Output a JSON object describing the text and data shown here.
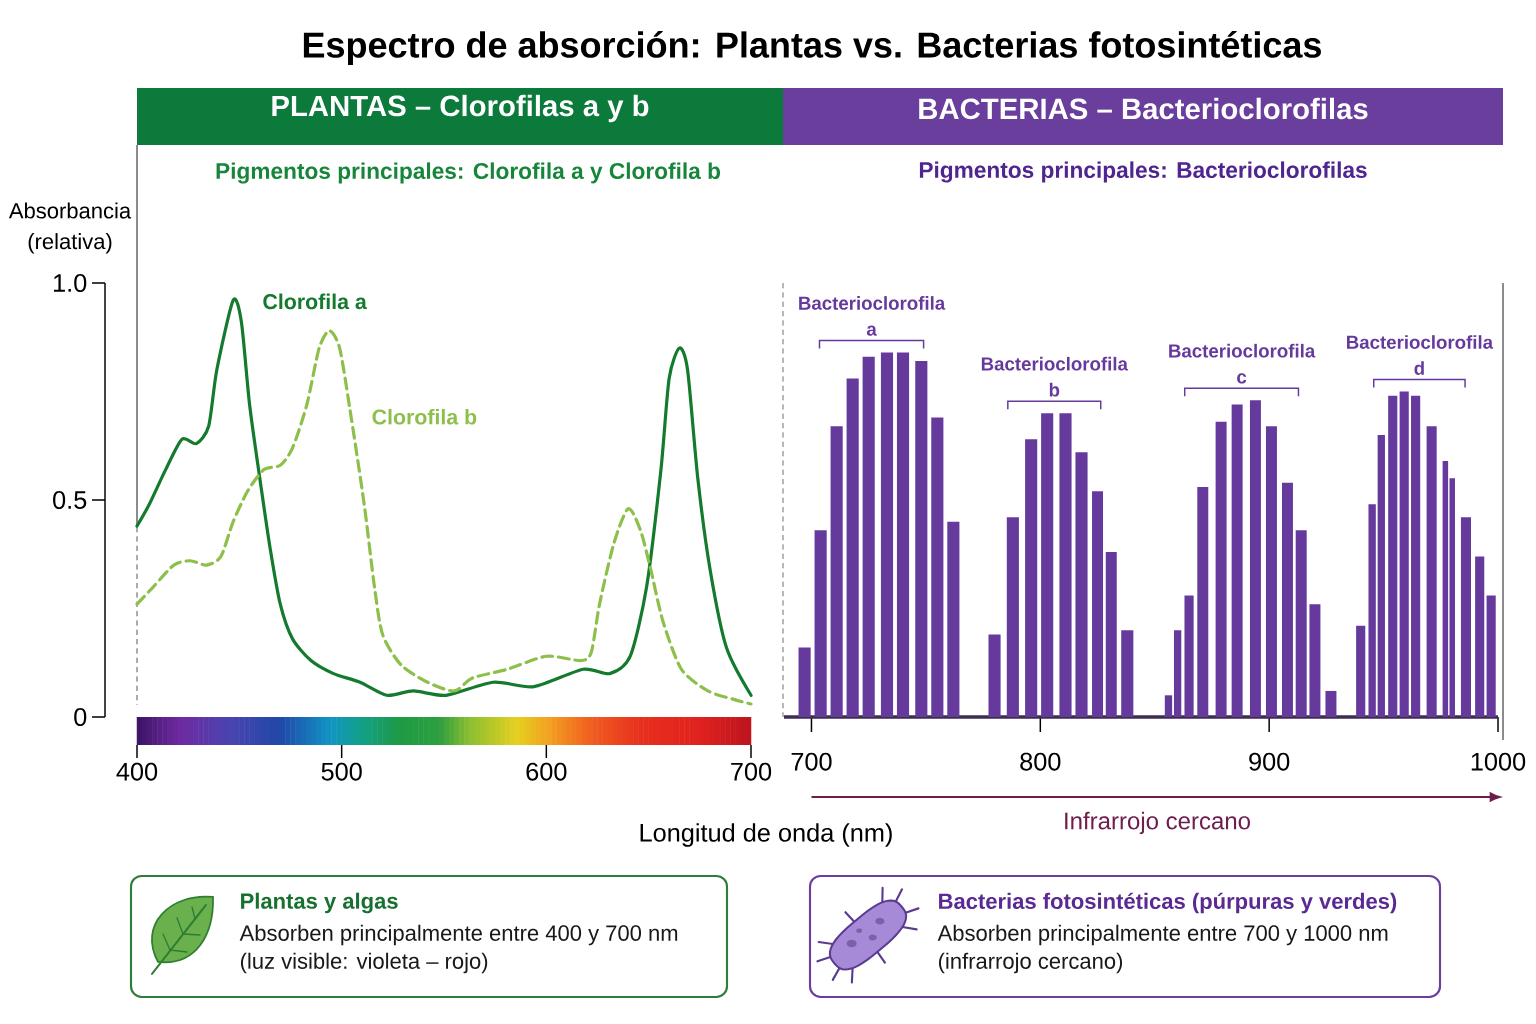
{
  "chart_data": [
    {
      "type": "line",
      "title": "PLANTAS – Clorofilas a y b",
      "subtitle": "Pigmentos principales: Clorofila a y Clorofila b",
      "xlabel": "Longitud de onda (nm)",
      "ylabel": "Absorbancia (relativa)",
      "xlim": [
        400,
        700
      ],
      "ylim": [
        0,
        1
      ],
      "xticks": [
        400,
        500,
        600,
        700
      ],
      "yticks": [
        0,
        0.5,
        {
          "value": 1,
          "label": "1.0"
        }
      ],
      "series": [
        {
          "name": "Clorofila a",
          "color": "#137a2e",
          "line_style": "solid",
          "x": [
            400,
            406,
            414,
            422,
            429,
            435,
            439,
            447,
            451,
            455,
            460,
            465,
            470,
            476,
            485,
            496,
            509,
            522,
            535,
            551,
            574,
            594,
            618,
            631,
            641,
            649,
            656,
            660,
            665,
            669,
            674,
            680,
            688,
            700
          ],
          "values": [
            0.44,
            0.49,
            0.57,
            0.64,
            0.63,
            0.67,
            0.8,
            0.96,
            0.91,
            0.72,
            0.55,
            0.39,
            0.26,
            0.18,
            0.13,
            0.1,
            0.08,
            0.05,
            0.06,
            0.05,
            0.08,
            0.07,
            0.11,
            0.1,
            0.14,
            0.3,
            0.57,
            0.78,
            0.85,
            0.8,
            0.55,
            0.34,
            0.16,
            0.05
          ]
        },
        {
          "name": "Clorofila b",
          "color": "#8cc04a",
          "line_style": "dashed",
          "x": [
            400,
            408,
            418,
            426,
            434,
            441,
            447,
            454,
            462,
            470,
            476,
            483,
            489,
            494,
            499,
            504,
            511,
            516,
            520,
            529,
            542,
            555,
            564,
            581,
            600,
            617,
            622,
            626,
            633,
            640,
            646,
            651,
            657,
            666,
            679,
            692,
            700
          ],
          "values": [
            0.26,
            0.3,
            0.35,
            0.36,
            0.35,
            0.37,
            0.45,
            0.52,
            0.57,
            0.58,
            0.62,
            0.72,
            0.85,
            0.89,
            0.85,
            0.71,
            0.49,
            0.3,
            0.19,
            0.12,
            0.08,
            0.06,
            0.09,
            0.11,
            0.14,
            0.13,
            0.15,
            0.26,
            0.4,
            0.48,
            0.43,
            0.34,
            0.22,
            0.11,
            0.06,
            0.04,
            0.03
          ]
        }
      ],
      "annotations": [
        "Espectro de absorción: Plantas vs. Bacterias fotosintéticas",
        "Plantas y algas",
        "Absorben principalmente entre 400 y 700 nm",
        "(luz visible: violeta – rojo)"
      ]
    },
    {
      "type": "bar",
      "title": "BACTERIAS – Bacterioclorofilas",
      "subtitle": "Pigmentos principales: Bacterioclorofilas",
      "xlim": [
        688,
        1000
      ],
      "ylim": [
        0,
        1
      ],
      "xticks": [
        700,
        800,
        900,
        1000
      ],
      "tick_labels": "x",
      "series": [
        {
          "name": "Bacterioclorofila a",
          "color": "#653a9c",
          "x": [
            697,
            704,
            711,
            718,
            725,
            733,
            740,
            748,
            755,
            762
          ],
          "values": [
            0.16,
            0.43,
            0.67,
            0.78,
            0.83,
            0.84,
            0.84,
            0.82,
            0.69,
            0.45
          ]
        },
        {
          "name": "Bacterioclorofila b",
          "color": "#653a9c",
          "x": [
            780,
            788,
            796,
            803,
            811,
            818,
            825,
            831,
            838
          ],
          "values": [
            0.19,
            0.46,
            0.64,
            0.7,
            0.7,
            0.61,
            0.52,
            0.38,
            0.2
          ]
        },
        {
          "name": "Bacterioclorofila c",
          "color": "#653a9c",
          "x": [
            856,
            860,
            865,
            871,
            879,
            886,
            894,
            901,
            908,
            914,
            920,
            927
          ],
          "values": [
            0.05,
            0.2,
            0.28,
            0.53,
            0.68,
            0.72,
            0.73,
            0.67,
            0.54,
            0.43,
            0.26,
            0.06
          ]
        },
        {
          "name": "Bacterioclorofila d",
          "color": "#653a9c",
          "x": [
            940,
            945,
            949,
            954,
            959,
            964,
            971,
            977,
            980,
            986,
            992,
            997
          ],
          "values": [
            0.21,
            0.49,
            0.65,
            0.74,
            0.75,
            0.74,
            0.67,
            0.59,
            0.55,
            0.46,
            0.37,
            0.28
          ]
        }
      ],
      "annotations": [
        "Infrarrojo cercano",
        "Bacterias fotosintéticas (púrpuras y verdes)",
        "Absorben principalmente entre 700 y 1000 nm",
        "(infrarrojo cercano)"
      ]
    }
  ]
}
